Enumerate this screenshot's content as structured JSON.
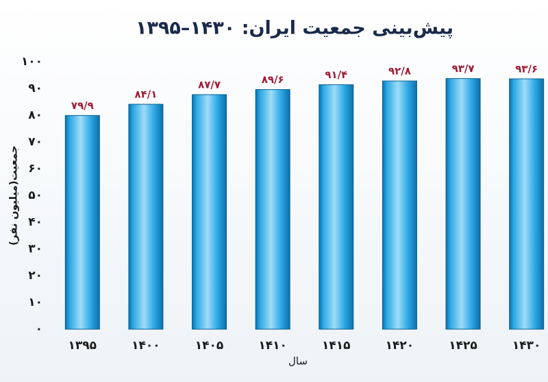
{
  "chart_data": {
    "type": "bar",
    "title": "پیش‌بینی جمعیت ایران: ۱۴۳۰–۱۳۹۵",
    "y_label": "جمعیت(میلیون نفر)",
    "x_label": "سال",
    "categories": [
      "۱۳۹۵",
      "۱۴۰۰",
      "۱۴۰۵",
      "۱۴۱۰",
      "۱۴۱۵",
      "۱۴۲۰",
      "۱۴۲۵",
      "۱۴۳۰"
    ],
    "values": [
      79.9,
      84.1,
      87.7,
      89.6,
      91.4,
      92.8,
      93.7,
      93.6
    ],
    "value_labels": [
      "۷۹/۹",
      "۸۴/۱",
      "۸۷/۷",
      "۸۹/۶",
      "۹۱/۴",
      "۹۲/۸",
      "۹۳/۷",
      "۹۳/۶"
    ],
    "color": "#2aa7e4",
    "ylim": [
      0,
      100
    ],
    "yticks": [
      {
        "value": 0,
        "label": "۰"
      },
      {
        "value": 10,
        "label": "۱۰"
      },
      {
        "value": 20,
        "label": "۲۰"
      },
      {
        "value": 30,
        "label": "۳۰"
      },
      {
        "value": 40,
        "label": "۴۰"
      },
      {
        "value": 50,
        "label": "۵۰"
      },
      {
        "value": 60,
        "label": "۶۰"
      },
      {
        "value": 70,
        "label": "۷۰"
      },
      {
        "value": 80,
        "label": "۸۰"
      },
      {
        "value": 90,
        "label": "۹۰"
      },
      {
        "value": 100,
        "label": "۱۰۰"
      }
    ],
    "grid": false
  }
}
